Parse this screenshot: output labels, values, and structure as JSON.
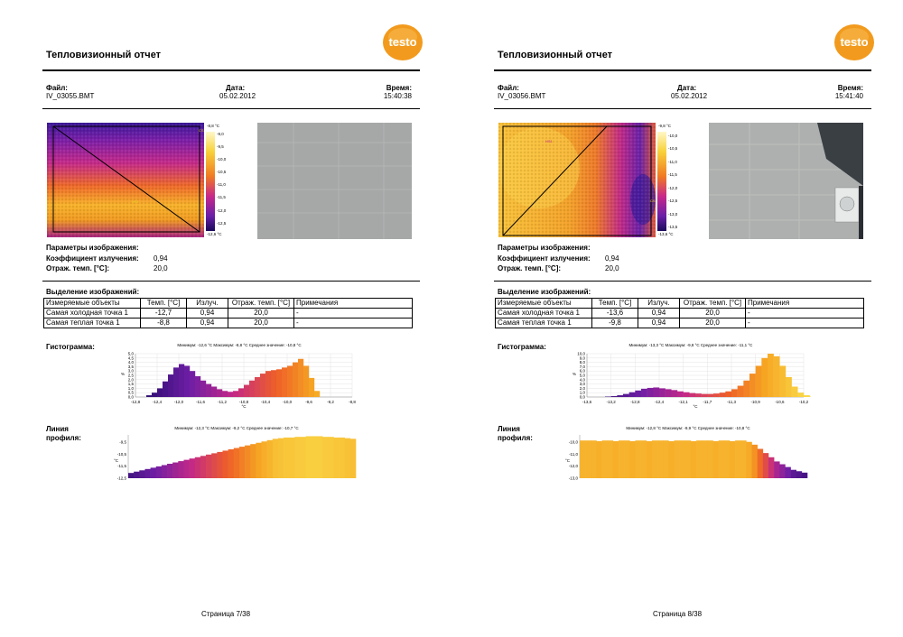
{
  "pages": [
    {
      "title": "Тепловизионный отчет",
      "logo_text": "testo",
      "file_label": "Файл:",
      "file_value": "IV_03055.BMT",
      "date_label": "Дата:",
      "date_value": "05.02.2012",
      "time_label": "Время:",
      "time_value": "15:40:38",
      "scale_labels": [
        "-8,8 °C",
        "-9,0",
        "-9,5",
        "-10,0",
        "-10,5",
        "-11,0",
        "-11,5",
        "-12,0",
        "-12,5",
        "-12,6 °C"
      ],
      "cold_marker": "CS",
      "hot_marker": "HS1",
      "params_heading": "Параметры изображения:",
      "emissivity_label": "Коэффициент излучения:",
      "emissivity_value": "0,94",
      "refl_label": "Отраж. темп. [°C]:",
      "refl_value": "20,0",
      "selection_heading": "Выделение изображений:",
      "table_headers": [
        "Измеряемые объекты",
        "Темп. [°C]",
        "Излуч.",
        "Отраж. темп. [°C]",
        "Примечания"
      ],
      "table_rows": [
        [
          "Самая холодная точка 1",
          "-12,7",
          "0,94",
          "20,0",
          "-"
        ],
        [
          "Самая теплая точка 1",
          "-8,8",
          "0,94",
          "20,0",
          "-"
        ]
      ],
      "histogram_label": "Гистограмма:",
      "histogram_stats": "Минимум: -12,6 °C Максимум: -8,8 °C Среднее значение: -10,8 °C",
      "histogram_y_ticks": [
        "5,0",
        "4,5",
        "4,0",
        "3,5",
        "3,0",
        "2,5",
        "2,0",
        "1,5",
        "1,0",
        "0,5",
        "0,0"
      ],
      "histogram_x_ticks": [
        "-12,8",
        "-12,4",
        "-12,0",
        "-11,6",
        "-11,2",
        "-10,8",
        "-10,4",
        "-10,0",
        "-9,6",
        "-9,2",
        "-8,8"
      ],
      "histogram_y_unit": "%",
      "histogram_x_unit": "°C",
      "profile_label_1": "Линия",
      "profile_label_2": "профиля:",
      "profile_stats": "Минимум: -12,3 °C Максимум: -9,2 °C Среднее значение: -10,7 °C",
      "profile_y_ticks": [
        "-9,5",
        "-10,5",
        "-11,5",
        "-12,5"
      ],
      "profile_y_unit": "°C",
      "footer": "Страница 7/38"
    },
    {
      "title": "Тепловизионный отчет",
      "logo_text": "testo",
      "file_label": "Файл:",
      "file_value": "IV_03056.BMT",
      "date_label": "Дата:",
      "date_value": "05.02.2012",
      "time_label": "Время:",
      "time_value": "15:41:40",
      "scale_labels": [
        "-9,8 °C",
        "-10,0",
        "-10,5",
        "-11,0",
        "-11,5",
        "-12,0",
        "-12,5",
        "-13,0",
        "-13,5",
        "-13,6 °C"
      ],
      "cold_marker": "CS",
      "hot_marker": "HS1",
      "params_heading": "Параметры изображения:",
      "emissivity_label": "Коэффициент излучения:",
      "emissivity_value": "0,94",
      "refl_label": "Отраж. темп. [°C]:",
      "refl_value": "20,0",
      "selection_heading": "Выделение изображений:",
      "table_headers": [
        "Измеряемые объекты",
        "Темп. [°C]",
        "Излуч.",
        "Отраж. темп. [°C]",
        "Примечания"
      ],
      "table_rows": [
        [
          "Самая холодная точка 1",
          "-13,6",
          "0,94",
          "20,0",
          "-"
        ],
        [
          "Самая теплая точка 1",
          "-9,8",
          "0,94",
          "20,0",
          "-"
        ]
      ],
      "histogram_label": "Гистограмма:",
      "histogram_stats": "Минимум: -13,3 °C Максимум: -9,8 °C Среднее значение: -11,1 °C",
      "histogram_y_ticks": [
        "10,0",
        "9,0",
        "8,0",
        "7,0",
        "6,0",
        "5,0",
        "4,0",
        "3,0",
        "2,0",
        "1,0",
        "0,0"
      ],
      "histogram_x_ticks": [
        "-13,6",
        "-13,2",
        "-12,8",
        "-12,4",
        "-12,1",
        "-11,7",
        "-11,3",
        "-10,9",
        "-10,6",
        "-10,2"
      ],
      "histogram_y_unit": "%",
      "histogram_x_unit": "°C",
      "profile_label_1": "Линия",
      "profile_label_2": "профиля:",
      "profile_stats": "Минимум: -12,8 °C Максимум: -9,9 °C Среднее значение: -10,8 °C",
      "profile_y_ticks": [
        "-10,0",
        "-11,0",
        "-12,0",
        "-13,0"
      ],
      "profile_y_unit": "°C",
      "footer": "Страница 8/38"
    }
  ],
  "chart_data": [
    {
      "type": "bar",
      "page": 7,
      "title": "Минимум: -12,6 °C Максимум: -8,8 °C Среднее значение: -10,8 °C",
      "xlabel": "°C",
      "ylabel": "%",
      "xlim": [
        -12.8,
        -8.8
      ],
      "ylim": [
        0,
        5
      ],
      "x": [
        -12.55,
        -12.45,
        -12.35,
        -12.25,
        -12.15,
        -12.05,
        -11.95,
        -11.85,
        -11.75,
        -11.65,
        -11.55,
        -11.45,
        -11.35,
        -11.25,
        -11.15,
        -11.05,
        -10.95,
        -10.85,
        -10.75,
        -10.65,
        -10.55,
        -10.45,
        -10.35,
        -10.25,
        -10.15,
        -10.05,
        -9.95,
        -9.85,
        -9.75,
        -9.65,
        -9.55,
        -9.45
      ],
      "values": [
        0.2,
        0.5,
        1.0,
        1.8,
        2.6,
        3.4,
        3.8,
        3.6,
        3.0,
        2.4,
        1.9,
        1.5,
        1.2,
        0.9,
        0.7,
        0.6,
        0.7,
        1.0,
        1.4,
        1.9,
        2.3,
        2.7,
        3.0,
        3.1,
        3.2,
        3.4,
        3.6,
        4.0,
        4.4,
        3.6,
        2.2,
        0.7
      ]
    },
    {
      "type": "bar",
      "page": 8,
      "title": "Минимум: -13,3 °C Максимум: -9,8 °C Среднее значение: -11,1 °C",
      "xlabel": "°C",
      "ylabel": "%",
      "xlim": [
        -13.6,
        -10.0
      ],
      "ylim": [
        0,
        10
      ],
      "x": [
        -13.25,
        -13.15,
        -13.05,
        -12.95,
        -12.85,
        -12.75,
        -12.65,
        -12.55,
        -12.45,
        -12.35,
        -12.25,
        -12.15,
        -12.05,
        -11.95,
        -11.85,
        -11.75,
        -11.65,
        -11.55,
        -11.45,
        -11.35,
        -11.25,
        -11.15,
        -11.05,
        -10.95,
        -10.85,
        -10.75,
        -10.65,
        -10.55,
        -10.45,
        -10.35,
        -10.25,
        -10.15,
        -10.05,
        -9.95,
        -9.85
      ],
      "values": [
        0.1,
        0.2,
        0.4,
        0.7,
        1.1,
        1.5,
        1.9,
        2.1,
        2.2,
        2.0,
        1.8,
        1.6,
        1.3,
        1.1,
        0.9,
        0.8,
        0.7,
        0.7,
        0.8,
        1.0,
        1.3,
        1.8,
        2.6,
        3.8,
        5.4,
        7.2,
        9.0,
        10.0,
        9.4,
        7.2,
        4.6,
        2.4,
        1.0,
        0.4,
        0.1
      ]
    },
    {
      "type": "area",
      "page": 7,
      "title": "Минимум: -12,3 °C Максимум: -9,2 °C Среднее значение: -10,7 °C",
      "ylabel": "°C",
      "ylim": [
        -12.5,
        -9.2
      ],
      "values": [
        -12.1,
        -12.0,
        -11.9,
        -11.8,
        -11.7,
        -11.6,
        -11.5,
        -11.4,
        -11.3,
        -11.2,
        -11.1,
        -11.0,
        -10.9,
        -10.8,
        -10.7,
        -10.6,
        -10.5,
        -10.4,
        -10.3,
        -10.2,
        -10.1,
        -10.0,
        -9.9,
        -9.8,
        -9.7,
        -9.6,
        -9.5,
        -9.45,
        -9.4,
        -9.4,
        -9.35,
        -9.35,
        -9.3,
        -9.3,
        -9.3,
        -9.35,
        -9.35,
        -9.4,
        -9.4,
        -9.45,
        -9.5
      ]
    },
    {
      "type": "area",
      "page": 8,
      "title": "Минимум: -12,8 °C Максимум: -9,9 °C Среднее значение: -10,8 °C",
      "ylabel": "°C",
      "ylim": [
        -13.0,
        -9.9
      ],
      "values": [
        -10.3,
        -10.3,
        -10.3,
        -10.35,
        -10.3,
        -10.3,
        -10.35,
        -10.3,
        -10.3,
        -10.35,
        -10.3,
        -10.3,
        -10.35,
        -10.3,
        -10.3,
        -10.3,
        -10.35,
        -10.3,
        -10.3,
        -10.3,
        -10.35,
        -10.3,
        -10.3,
        -10.3,
        -10.35,
        -10.3,
        -10.3,
        -10.35,
        -10.3,
        -10.3,
        -10.4,
        -10.6,
        -10.9,
        -11.2,
        -11.5,
        -11.8,
        -12.0,
        -12.2,
        -12.4,
        -12.5,
        -12.6
      ]
    }
  ]
}
